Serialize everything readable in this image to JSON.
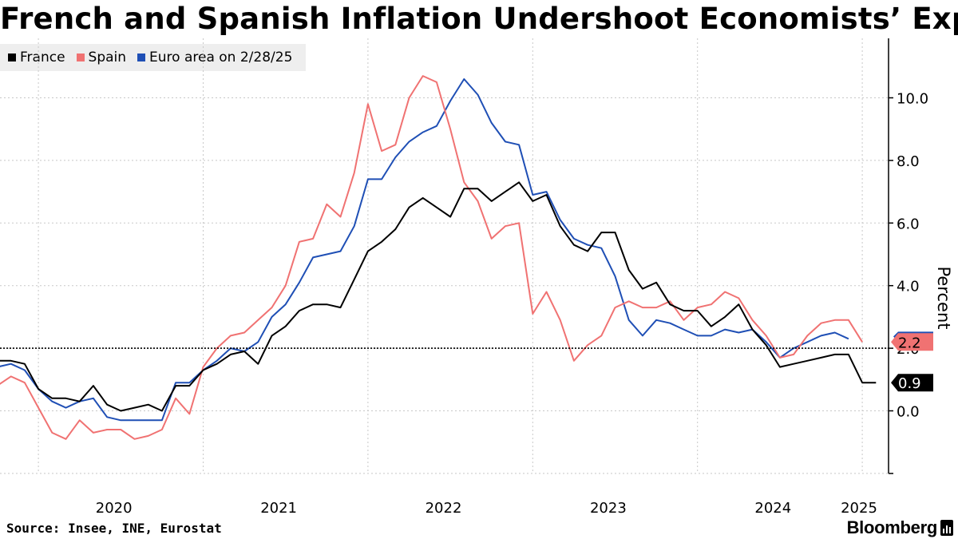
{
  "title": "French and Spanish Inflation Undershoot Economists’ Expecations",
  "legend": [
    {
      "label": "France",
      "color": "#000000"
    },
    {
      "label": "Spain",
      "color": "#f07272"
    },
    {
      "label": "Euro area on 2/28/25",
      "color": "#1f4fb5"
    }
  ],
  "source": "Source: Insee, INE, Eurostat",
  "brand": "Bloomberg",
  "chart_data": {
    "type": "line",
    "title": "French and Spanish Inflation Undershoot Economists’ Expecations",
    "ylabel": "Percent",
    "xlabel": "",
    "ylim": [
      -2.0,
      11.7
    ],
    "yticks": [
      0.0,
      2.0,
      4.0,
      6.0,
      8.0,
      10.0
    ],
    "ytick_labels": [
      "0.0",
      "2.0",
      "4.0",
      "6.0",
      "8.0",
      "10.0"
    ],
    "x_start": "2019-10",
    "x_step": "month",
    "xtick_labels": [
      "2020",
      "2021",
      "2022",
      "2023",
      "2024",
      "2025"
    ],
    "reference_line": {
      "value": 2.0,
      "style": "dotted"
    },
    "end_labels": [
      {
        "value": 2.2,
        "text": "2.2",
        "color": "#f07272",
        "series": "Spain"
      },
      {
        "value": 0.9,
        "text": "0.9",
        "color": "#000000",
        "series": "France"
      }
    ],
    "series": [
      {
        "name": "France",
        "color": "#000000",
        "values": [
          1.6,
          1.6,
          1.5,
          0.7,
          0.4,
          0.4,
          0.3,
          0.8,
          0.2,
          0.0,
          0.1,
          0.2,
          0.0,
          0.8,
          0.8,
          1.3,
          1.5,
          1.8,
          1.9,
          1.5,
          2.4,
          2.7,
          3.2,
          3.4,
          3.4,
          3.3,
          4.2,
          5.1,
          5.4,
          5.8,
          6.5,
          6.8,
          6.5,
          6.2,
          7.1,
          7.1,
          6.7,
          7.0,
          7.3,
          6.7,
          6.9,
          5.9,
          5.3,
          5.1,
          5.7,
          5.7,
          4.5,
          3.9,
          4.1,
          3.4,
          3.2,
          3.2,
          2.7,
          3.0,
          3.4,
          2.6,
          2.1,
          1.4,
          1.5,
          1.6,
          1.7,
          1.8,
          1.8,
          0.9,
          0.9
        ]
      },
      {
        "name": "Spain",
        "color": "#f07272",
        "values": [
          0.8,
          1.1,
          0.9,
          0.1,
          -0.7,
          -0.9,
          -0.3,
          -0.7,
          -0.6,
          -0.6,
          -0.9,
          -0.8,
          -0.6,
          0.4,
          -0.1,
          1.4,
          2.0,
          2.4,
          2.5,
          2.9,
          3.3,
          4.0,
          5.4,
          5.5,
          6.6,
          6.2,
          7.6,
          9.8,
          8.3,
          8.5,
          10.0,
          10.7,
          10.5,
          9.0,
          7.3,
          6.7,
          5.5,
          5.9,
          6.0,
          3.1,
          3.8,
          2.9,
          1.6,
          2.1,
          2.4,
          3.3,
          3.5,
          3.3,
          3.3,
          3.5,
          2.9,
          3.3,
          3.4,
          3.8,
          3.6,
          2.9,
          2.4,
          1.7,
          1.8,
          2.4,
          2.8,
          2.9,
          2.9,
          2.2
        ]
      },
      {
        "name": "Euro area on 2/28/25",
        "color": "#1f4fb5",
        "values": [
          1.4,
          1.5,
          1.3,
          0.7,
          0.3,
          0.1,
          0.3,
          0.4,
          -0.2,
          -0.3,
          -0.3,
          -0.3,
          -0.3,
          0.9,
          0.9,
          1.3,
          1.6,
          2.0,
          1.9,
          2.2,
          3.0,
          3.4,
          4.1,
          4.9,
          5.0,
          5.1,
          5.9,
          7.4,
          7.4,
          8.1,
          8.6,
          8.9,
          9.1,
          9.9,
          10.6,
          10.1,
          9.2,
          8.6,
          8.5,
          6.9,
          7.0,
          6.1,
          5.5,
          5.3,
          5.2,
          4.3,
          2.9,
          2.4,
          2.9,
          2.8,
          2.6,
          2.4,
          2.4,
          2.6,
          2.5,
          2.6,
          2.2,
          1.7,
          2.0,
          2.2,
          2.4,
          2.5,
          2.3
        ]
      }
    ]
  }
}
